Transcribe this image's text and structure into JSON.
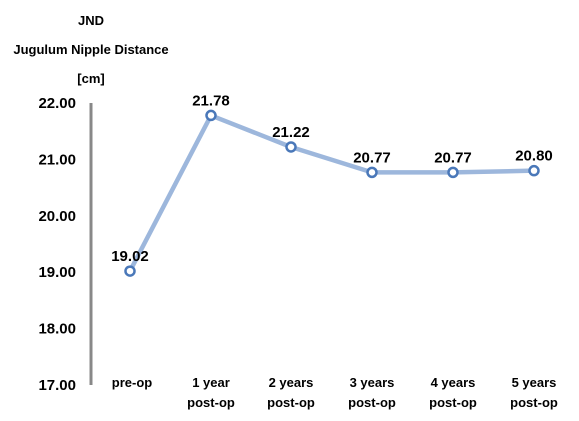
{
  "chart_data": {
    "type": "line",
    "ylabel_lines": [
      "JND",
      "Jugulum Nipple Distance",
      "[cm]"
    ],
    "categories": [
      [
        "pre-op"
      ],
      [
        "1 year",
        "post-op"
      ],
      [
        "2 years",
        "post-op"
      ],
      [
        "3 years",
        "post-op"
      ],
      [
        "4 years",
        "post-op"
      ],
      [
        "5 years",
        "post-op"
      ]
    ],
    "series": [
      {
        "values": [
          19.02,
          21.78,
          21.22,
          20.77,
          20.77,
          20.8
        ]
      }
    ],
    "data_labels": [
      "19.02",
      "21.78",
      "21.22",
      "20.77",
      "20.77",
      "20.80"
    ],
    "ylim": [
      17.0,
      22.0
    ],
    "yticks": [
      "22.00",
      "21.00",
      "20.00",
      "19.00",
      "18.00",
      "17.00"
    ],
    "grid": false,
    "legend": "none",
    "colors": {
      "line": "#9db7dc",
      "marker_fill": "#ffffff",
      "marker_stroke": "#4a78b9",
      "axis": "#888888"
    }
  }
}
